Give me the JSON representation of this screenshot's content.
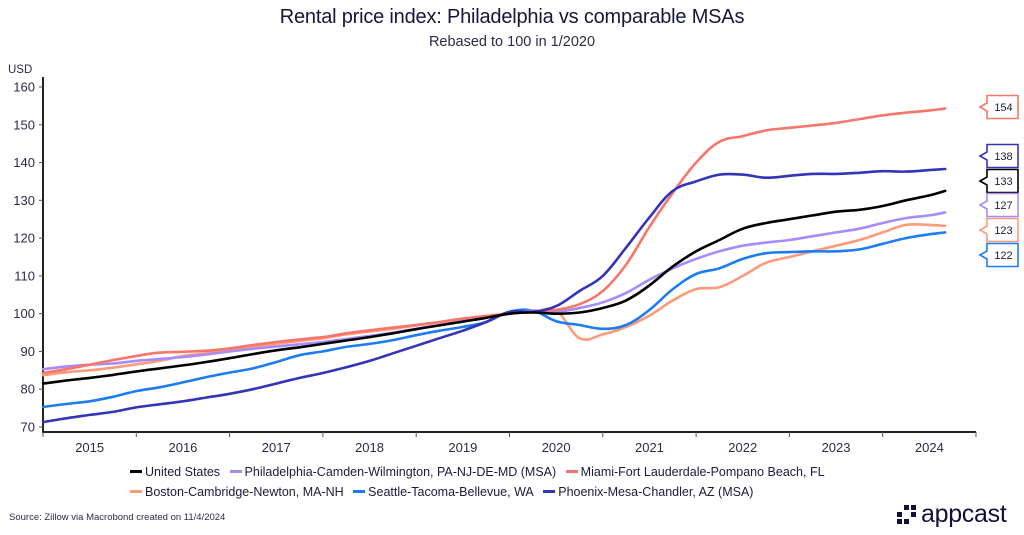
{
  "header": {
    "title": "Rental price index: Philadelphia vs comparable MSAs",
    "subtitle": "Rebased to 100 in 1/2020"
  },
  "footer": {
    "source": "Source: Zillow via Macrobond created on 11/4/2024",
    "logo_text": "appcast",
    "logo_icon": "appcast-dots-icon"
  },
  "chart_data": {
    "type": "line",
    "title": "Rental price index: Philadelphia vs comparable MSAs",
    "subtitle": "Rebased to 100 in 1/2020",
    "xlabel": "",
    "ylabel": "USD",
    "ylim": [
      70,
      160
    ],
    "yticks": [
      70,
      80,
      90,
      100,
      110,
      120,
      130,
      140,
      150,
      160
    ],
    "ytick_labels": [
      "70",
      "80",
      "90",
      "100",
      "110",
      "120",
      "130",
      "140",
      "150",
      "160"
    ],
    "xlim": [
      2015.0,
      2025.0
    ],
    "xtick_labels": [
      "2015",
      "2016",
      "2017",
      "2018",
      "2019",
      "2020",
      "2021",
      "2022",
      "2023",
      "2024"
    ],
    "grid": false,
    "legend_position": "bottom",
    "x": [
      2015.0,
      2015.25,
      2015.5,
      2015.75,
      2016.0,
      2016.25,
      2016.5,
      2016.75,
      2017.0,
      2017.25,
      2017.5,
      2017.75,
      2018.0,
      2018.25,
      2018.5,
      2018.75,
      2019.0,
      2019.25,
      2019.5,
      2019.75,
      2020.0,
      2020.25,
      2020.5,
      2020.75,
      2021.0,
      2021.25,
      2021.5,
      2021.75,
      2022.0,
      2022.25,
      2022.5,
      2022.75,
      2023.0,
      2023.25,
      2023.5,
      2023.75,
      2024.0,
      2024.25,
      2024.5,
      2024.67
    ],
    "series": [
      {
        "name": "United States",
        "color": "#000000",
        "end_label": "133",
        "values": [
          81.5,
          82.3,
          83.0,
          83.8,
          84.7,
          85.5,
          86.3,
          87.2,
          88.2,
          89.3,
          90.3,
          91.1,
          92.0,
          92.9,
          93.8,
          94.8,
          95.9,
          96.9,
          97.9,
          98.9,
          100.0,
          100.3,
          100.0,
          100.3,
          101.5,
          103.5,
          107.5,
          112.5,
          116.5,
          119.5,
          122.5,
          124.0,
          125.0,
          126.0,
          127.0,
          127.5,
          128.5,
          130.0,
          131.3,
          132.5
        ]
      },
      {
        "name": "Philadelphia-Camden-Wilmington, PA-NJ-DE-MD (MSA)",
        "color": "#a78bfa",
        "end_label": "127",
        "values": [
          85.3,
          86.0,
          86.5,
          86.8,
          87.5,
          88.0,
          88.5,
          89.2,
          90.0,
          90.7,
          91.3,
          91.9,
          92.5,
          93.3,
          94.1,
          95.0,
          96.0,
          97.0,
          98.0,
          99.0,
          100.0,
          100.8,
          100.5,
          101.5,
          103.0,
          105.5,
          109.0,
          112.0,
          114.5,
          116.5,
          118.0,
          118.8,
          119.5,
          120.5,
          121.5,
          122.5,
          124.0,
          125.3,
          126.0,
          126.8
        ]
      },
      {
        "name": "Miami-Fort Lauderdale-Pompano Beach, FL",
        "color": "#f7766c",
        "end_label": "154",
        "values": [
          84.3,
          85.3,
          86.5,
          87.7,
          88.8,
          89.7,
          89.9,
          90.2,
          90.8,
          91.7,
          92.5,
          93.2,
          93.8,
          94.8,
          95.6,
          96.3,
          97.0,
          97.8,
          98.7,
          99.4,
          100.0,
          100.5,
          101.0,
          102.5,
          106.0,
          113.0,
          123.0,
          132.0,
          140.0,
          145.5,
          147.0,
          148.5,
          149.2,
          149.8,
          150.5,
          151.5,
          152.5,
          153.2,
          153.8,
          154.3
        ]
      },
      {
        "name": "Boston-Cambridge-Newton, MA-NH",
        "color": "#fd9a7a",
        "end_label": "123",
        "values": [
          83.7,
          84.5,
          85.0,
          85.7,
          86.6,
          87.5,
          88.8,
          89.5,
          90.5,
          91.2,
          92.0,
          92.8,
          93.5,
          94.5,
          95.3,
          96.0,
          96.9,
          97.7,
          98.5,
          99.2,
          100.0,
          100.5,
          100.8,
          93.5,
          94.5,
          96.5,
          99.5,
          103.5,
          106.5,
          107.0,
          110.0,
          113.5,
          115.0,
          116.5,
          118.0,
          119.5,
          121.5,
          123.5,
          123.5,
          123.2
        ]
      },
      {
        "name": "Seattle-Tacoma-Bellevue, WA",
        "color": "#1c7cf2",
        "end_label": "122",
        "values": [
          75.3,
          76.1,
          76.8,
          78.0,
          79.5,
          80.5,
          81.8,
          83.2,
          84.4,
          85.5,
          87.2,
          89.0,
          90.0,
          91.2,
          92.0,
          93.0,
          94.3,
          95.5,
          96.5,
          97.8,
          100.5,
          100.8,
          98.0,
          97.0,
          96.0,
          97.0,
          101.0,
          106.5,
          110.5,
          112.0,
          114.5,
          116.0,
          116.3,
          116.5,
          116.5,
          117.0,
          118.5,
          120.0,
          121.0,
          121.5
        ]
      },
      {
        "name": "Phoenix-Mesa-Chandler, AZ (MSA)",
        "color": "#3434b8",
        "end_label": "138",
        "values": [
          71.3,
          72.3,
          73.2,
          74.0,
          75.2,
          76.0,
          76.8,
          77.8,
          78.8,
          80.0,
          81.5,
          83.0,
          84.3,
          85.8,
          87.5,
          89.5,
          91.5,
          93.5,
          95.5,
          97.8,
          100.5,
          100.5,
          102.0,
          106.0,
          110.0,
          117.5,
          125.5,
          132.5,
          135.0,
          136.8,
          136.8,
          136.0,
          136.5,
          137.0,
          137.0,
          137.3,
          137.7,
          137.6,
          138.0,
          138.3
        ]
      }
    ]
  }
}
